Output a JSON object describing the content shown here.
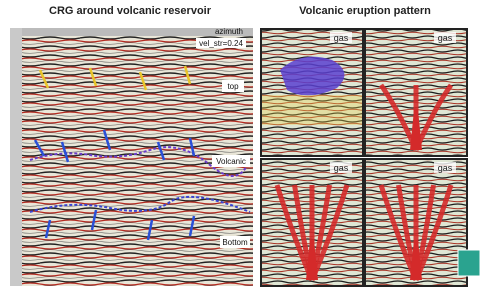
{
  "left_panel": {
    "title": "CRG around volcanic reservoir",
    "axis_label": "azimuth",
    "annotation": "vel_str=0.24",
    "labels": [
      "top",
      "Volcanic",
      "Bottom"
    ]
  },
  "right_panel": {
    "title": "Volcanic eruption pattern",
    "panels": [
      {
        "label": "gas"
      },
      {
        "label": "gas"
      },
      {
        "label": "gas"
      },
      {
        "label": "gas"
      }
    ]
  }
}
